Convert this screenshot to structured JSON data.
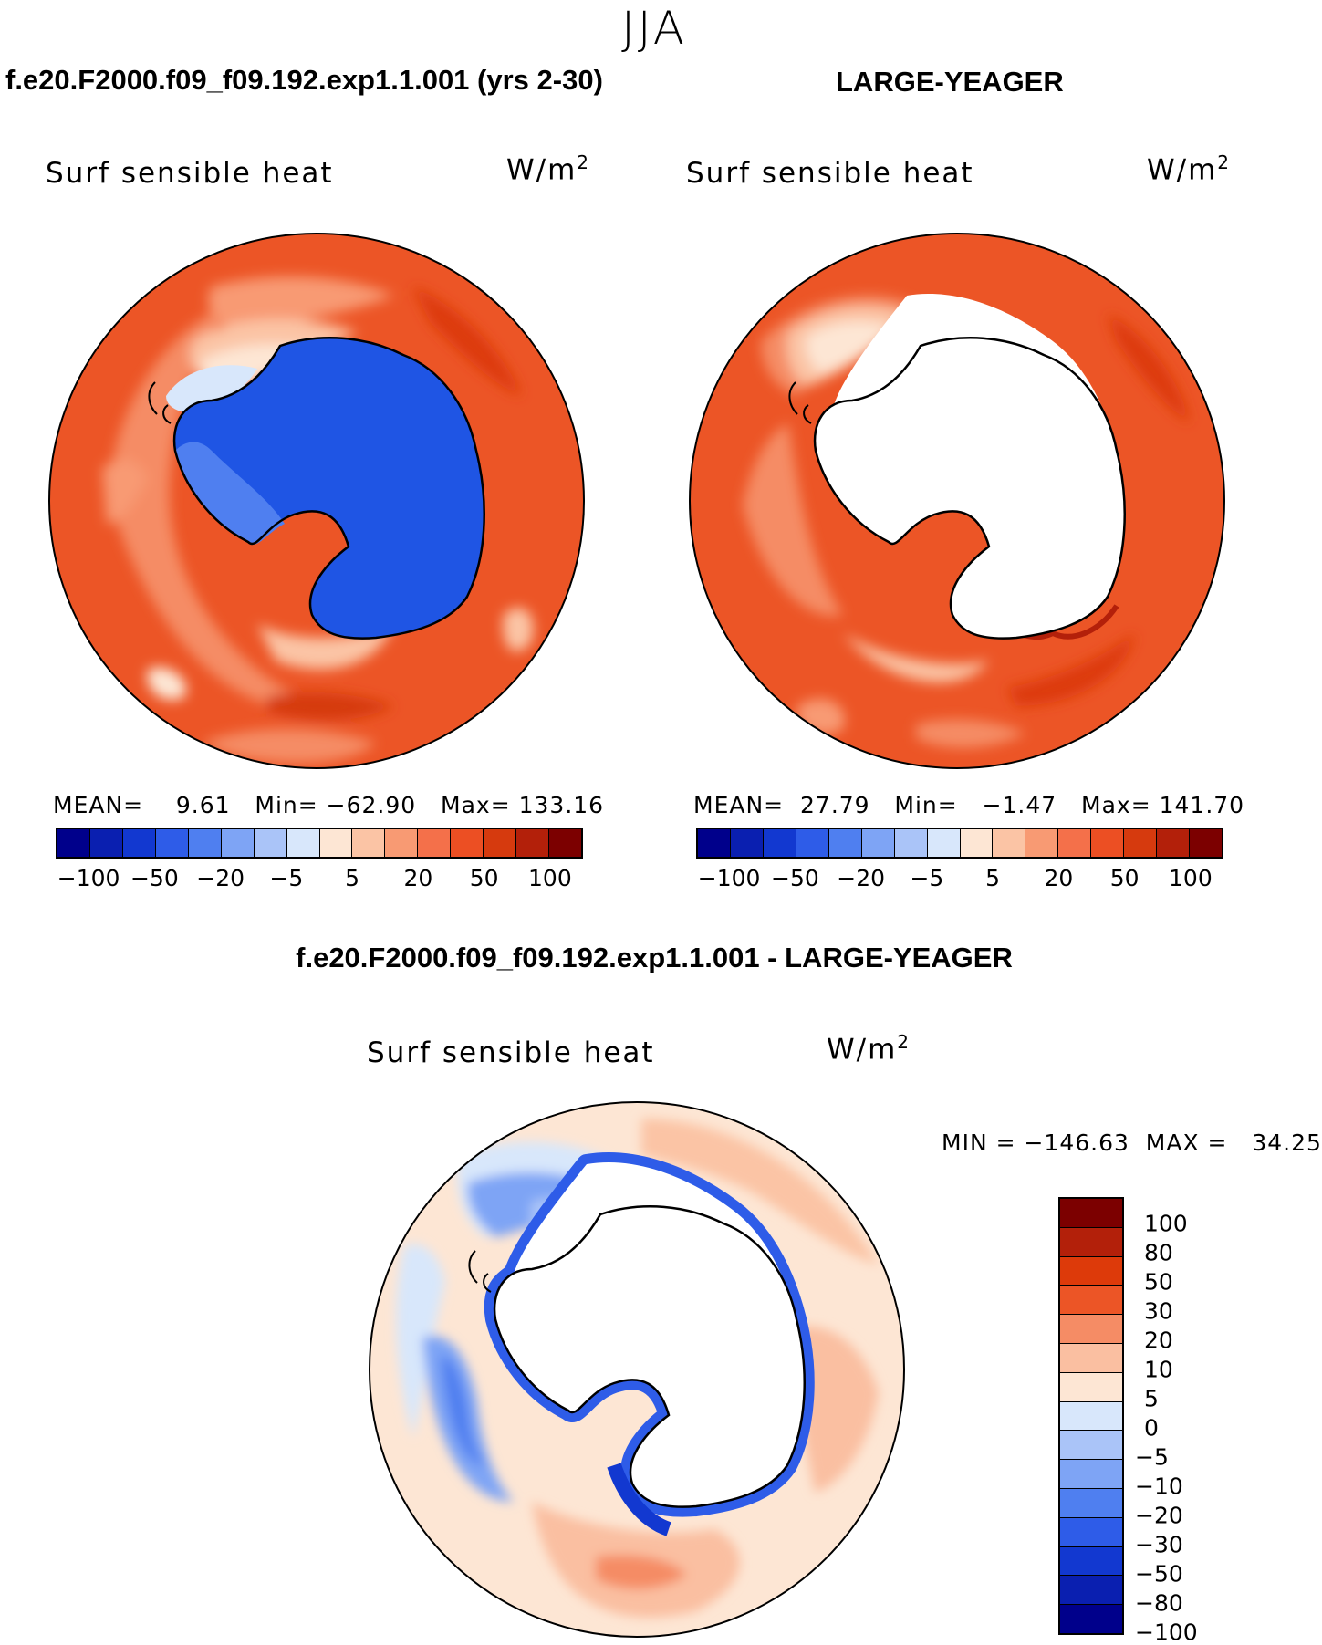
{
  "season": "JJA",
  "top_left": {
    "title": "f.e20.F2000.f09_f09.192.exp1.1.001 (yrs 2-30)",
    "variable": "Surf sensible heat",
    "units": "W/m",
    "units_exp": "2",
    "stats": "MEAN=    9.61   Min= −62.90   Max= 133.16"
  },
  "top_right": {
    "title": "LARGE-YEAGER",
    "variable": "Surf sensible heat",
    "units": "W/m",
    "units_exp": "2",
    "stats": "MEAN=  27.79   Min=   −1.47   Max= 141.70"
  },
  "bottom": {
    "title": "f.e20.F2000.f09_f09.192.exp1.1.001 - LARGE-YEAGER",
    "variable": "Surf sensible heat",
    "units": "W/m",
    "units_exp": "2",
    "stats": "MIN = −146.63  MAX =   34.25"
  },
  "colorbar_h": {
    "colors": [
      "#00008b",
      "#0a1fb0",
      "#1238d0",
      "#2e5ce8",
      "#4f7ff0",
      "#7ea4f5",
      "#aac4f8",
      "#d8e7fb",
      "#fde6d4",
      "#fbc4a5",
      "#f89a73",
      "#f4704a",
      "#ec4f23",
      "#d63a0e",
      "#b3200a",
      "#7c0000"
    ],
    "labels": [
      "−100",
      "−50",
      "−20",
      "−5",
      "5",
      "20",
      "50",
      "100"
    ]
  },
  "colorbar_v": {
    "colors": [
      "#7c0000",
      "#b3200a",
      "#dd3a0a",
      "#ec5526",
      "#f58c65",
      "#fabfa1",
      "#fde6d4",
      "#d8e7fb",
      "#aac4f8",
      "#7ea4f5",
      "#4f7ff0",
      "#2e5ce8",
      "#1238d0",
      "#0a1fb0",
      "#00008b"
    ],
    "labels": [
      "100",
      "80",
      "50",
      "30",
      "20",
      "10",
      "5",
      "0",
      "−5",
      "−10",
      "−20",
      "−30",
      "−50",
      "−80",
      "−100"
    ]
  }
}
